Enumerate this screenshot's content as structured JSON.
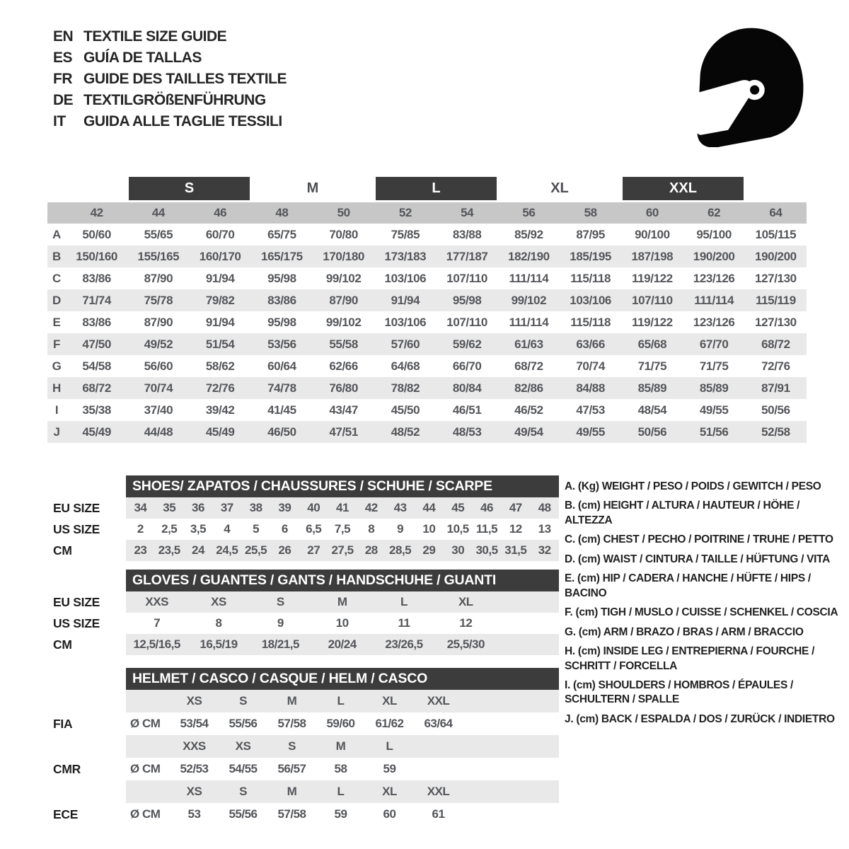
{
  "colors": {
    "dark_band": "#3c3c3c",
    "number_band": "#c7c7c7",
    "row_stripe": "#e9e9e9",
    "value_text": "#54565a",
    "label_text": "#222222",
    "band_text": "#ffffff"
  },
  "icons": {
    "helmet_icon": "full-face-racing-helmet"
  },
  "languages": [
    {
      "code": "EN",
      "title": "TEXTILE SIZE GUIDE"
    },
    {
      "code": "ES",
      "title": "GUÍA DE TALLAS"
    },
    {
      "code": "FR",
      "title": "GUIDE DES TAILLES TEXTILE"
    },
    {
      "code": "DE",
      "title": "TEXTILGRÖßENFÜHRUNG"
    },
    {
      "code": "IT",
      "title": "GUIDA ALLE TAGLIE TESSILI"
    }
  ],
  "size_table": {
    "size_groups": [
      {
        "label": "S",
        "highlight": true
      },
      {
        "label": "M",
        "highlight": false
      },
      {
        "label": "L",
        "highlight": true
      },
      {
        "label": "XL",
        "highlight": false
      },
      {
        "label": "XXL",
        "highlight": true
      }
    ],
    "columns": [
      "42",
      "44",
      "46",
      "48",
      "50",
      "52",
      "54",
      "56",
      "58",
      "60",
      "62",
      "64"
    ],
    "rows": [
      {
        "label": "A",
        "values": [
          "50/60",
          "55/65",
          "60/70",
          "65/75",
          "70/80",
          "75/85",
          "83/88",
          "85/92",
          "87/95",
          "90/100",
          "95/100",
          "105/115"
        ]
      },
      {
        "label": "B",
        "values": [
          "150/160",
          "155/165",
          "160/170",
          "165/175",
          "170/180",
          "173/183",
          "177/187",
          "182/190",
          "185/195",
          "187/198",
          "190/200",
          "190/200"
        ]
      },
      {
        "label": "C",
        "values": [
          "83/86",
          "87/90",
          "91/94",
          "95/98",
          "99/102",
          "103/106",
          "107/110",
          "111/114",
          "115/118",
          "119/122",
          "123/126",
          "127/130"
        ]
      },
      {
        "label": "D",
        "values": [
          "71/74",
          "75/78",
          "79/82",
          "83/86",
          "87/90",
          "91/94",
          "95/98",
          "99/102",
          "103/106",
          "107/110",
          "111/114",
          "115/119"
        ]
      },
      {
        "label": "E",
        "values": [
          "83/86",
          "87/90",
          "91/94",
          "95/98",
          "99/102",
          "103/106",
          "107/110",
          "111/114",
          "115/118",
          "119/122",
          "123/126",
          "127/130"
        ]
      },
      {
        "label": "F",
        "values": [
          "47/50",
          "49/52",
          "51/54",
          "53/56",
          "55/58",
          "57/60",
          "59/62",
          "61/63",
          "63/66",
          "65/68",
          "67/70",
          "68/72"
        ]
      },
      {
        "label": "G",
        "values": [
          "54/58",
          "56/60",
          "58/62",
          "60/64",
          "62/66",
          "64/68",
          "66/70",
          "68/72",
          "70/74",
          "71/75",
          "71/75",
          "72/76"
        ]
      },
      {
        "label": "H",
        "values": [
          "68/72",
          "70/74",
          "72/76",
          "74/78",
          "76/80",
          "78/82",
          "80/84",
          "82/86",
          "84/88",
          "85/89",
          "85/89",
          "87/91"
        ]
      },
      {
        "label": "I",
        "values": [
          "35/38",
          "37/40",
          "39/42",
          "41/45",
          "43/47",
          "45/50",
          "46/51",
          "46/52",
          "47/53",
          "48/54",
          "49/55",
          "50/56"
        ]
      },
      {
        "label": "J",
        "values": [
          "45/49",
          "44/48",
          "45/49",
          "46/50",
          "47/51",
          "48/52",
          "48/53",
          "49/54",
          "49/55",
          "50/56",
          "51/56",
          "52/58"
        ]
      }
    ]
  },
  "shoes_table": {
    "title": "SHOES/ ZAPATOS / CHAUSSURES / SCHUHE / SCARPE",
    "rows": [
      {
        "label": "EU SIZE",
        "values": [
          "34",
          "35",
          "36",
          "37",
          "38",
          "39",
          "40",
          "41",
          "42",
          "43",
          "44",
          "45",
          "46",
          "47",
          "48"
        ]
      },
      {
        "label": "US SIZE",
        "values": [
          "2",
          "2,5",
          "3,5",
          "4",
          "5",
          "6",
          "6,5",
          "7,5",
          "8",
          "9",
          "10",
          "10,5",
          "11,5",
          "12",
          "13"
        ]
      },
      {
        "label": "CM",
        "values": [
          "23",
          "23,5",
          "24",
          "24,5",
          "25,5",
          "26",
          "27",
          "27,5",
          "28",
          "28,5",
          "29",
          "30",
          "30,5",
          "31,5",
          "32"
        ]
      }
    ]
  },
  "gloves_table": {
    "title": "GLOVES / GUANTES / GANTS / HANDSCHUHE / GUANTI",
    "rows": [
      {
        "label": "EU SIZE",
        "values": [
          "XXS",
          "XS",
          "S",
          "M",
          "L",
          "XL"
        ]
      },
      {
        "label": "US SIZE",
        "values": [
          "7",
          "8",
          "9",
          "10",
          "11",
          "12"
        ]
      },
      {
        "label": "CM",
        "values": [
          "12,5/16,5",
          "16,5/19",
          "18/21,5",
          "20/24",
          "23/26,5",
          "25,5/30"
        ]
      }
    ]
  },
  "helmet_table": {
    "title": "HELMET / CASCO / CASQUE / HELM / CASCO",
    "sections": [
      {
        "label": "FIA",
        "unit": "Ø CM",
        "sizes": [
          "XS",
          "S",
          "M",
          "L",
          "XL",
          "XXL"
        ],
        "values": [
          "53/54",
          "55/56",
          "57/58",
          "59/60",
          "61/62",
          "63/64"
        ]
      },
      {
        "label": "CMR",
        "unit": "Ø CM",
        "sizes": [
          "XXS",
          "XS",
          "S",
          "M",
          "L"
        ],
        "values": [
          "52/53",
          "54/55",
          "56/57",
          "58",
          "59"
        ]
      },
      {
        "label": "ECE",
        "unit": "Ø CM",
        "sizes": [
          "XS",
          "S",
          "M",
          "L",
          "XL",
          "XXL"
        ],
        "values": [
          "53",
          "55/56",
          "57/58",
          "59",
          "60",
          "61"
        ]
      }
    ]
  },
  "legend": [
    "A. (Kg) WEIGHT / PESO / POIDS / GEWITCH / PESO",
    "B. (cm) HEIGHT / ALTURA / HAUTEUR / HÖHE / ALTEZZA",
    "C. (cm) CHEST / PECHO / POITRINE / TRUHE / PETTO",
    "D. (cm) WAIST / CINTURA / TAILLE / HÜFTUNG / VITA",
    "E. (cm) HIP / CADERA / HANCHE / HÜFTE / HIPS / BACINO",
    "F. (cm) TIGH / MUSLO / CUISSE / SCHENKEL / COSCIA",
    "G. (cm) ARM / BRAZO / BRAS / ARM / BRACCIO",
    "H. (cm) INSIDE LEG / ENTREPIERNA / FOURCHE / SCHRITT / FORCELLA",
    "I. (cm) SHOULDERS / HOMBROS / ÉPAULES / SCHULTERN / SPALLE",
    "J. (cm) BACK / ESPALDA / DOS / ZURÜCK / INDIETRO"
  ]
}
